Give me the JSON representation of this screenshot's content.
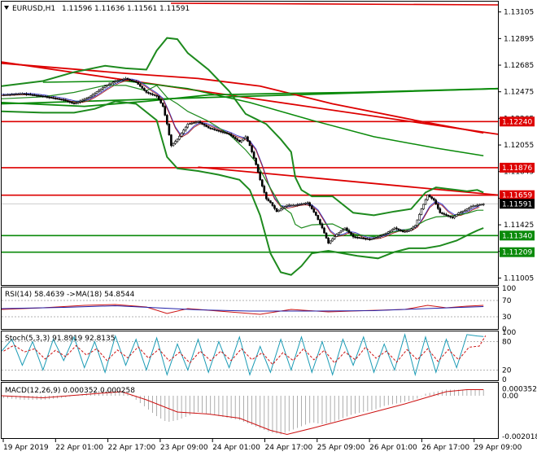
{
  "chart_data": {
    "type": "candlestick",
    "symbol_header": "EURUSD,H1",
    "ohlc_header": [
      "1.11596",
      "1.11636",
      "1.11561",
      "1.11591"
    ],
    "x_labels": [
      "19 Apr 2019",
      "22 Apr 01:00",
      "22 Apr 17:00",
      "23 Apr 09:00",
      "24 Apr 01:00",
      "24 Apr 17:00",
      "25 Apr 09:00",
      "26 Apr 01:00",
      "26 Apr 17:00",
      "29 Apr 09:00"
    ],
    "price_axis": {
      "ticks": [
        "1.13105",
        "1.12895",
        "1.12685",
        "1.12475",
        "1.12265",
        "1.12055",
        "1.11845",
        "1.11635",
        "1.11425",
        "1.11215",
        "1.11005"
      ],
      "range": [
        1.1095,
        1.1318
      ]
    },
    "price_tags": [
      {
        "label": "1.12240",
        "value": 1.1224,
        "color": "#dd0000"
      },
      {
        "label": "1.11876",
        "value": 1.11876,
        "color": "#dd0000"
      },
      {
        "label": "1.11659",
        "value": 1.11659,
        "color": "#dd0000"
      },
      {
        "label": "1.11591",
        "value": 1.11591,
        "color": "#000000"
      },
      {
        "label": "1.11340",
        "value": 1.1134,
        "color": "#0a8a0a"
      },
      {
        "label": "1.11209",
        "value": 1.11209,
        "color": "#0a8a0a"
      }
    ],
    "levels": [
      {
        "value": 1.1224,
        "color": "#dd0000"
      },
      {
        "value": 1.11876,
        "color": "#dd0000"
      },
      {
        "value": 1.11659,
        "color": "#dd0000"
      },
      {
        "value": 1.1134,
        "color": "#0a8a0a"
      },
      {
        "value": 1.11209,
        "color": "#0a8a0a"
      }
    ],
    "close_path": [
      [
        0,
        1.1245
      ],
      [
        10,
        1.1246
      ],
      [
        20,
        1.1244
      ],
      [
        30,
        1.1241
      ],
      [
        35,
        1.1238
      ],
      [
        42,
        1.1243
      ],
      [
        50,
        1.1252
      ],
      [
        55,
        1.1256
      ],
      [
        60,
        1.1258
      ],
      [
        65,
        1.1255
      ],
      [
        70,
        1.1247
      ],
      [
        75,
        1.1244
      ],
      [
        78,
        1.1236
      ],
      [
        80,
        1.1222
      ],
      [
        82,
        1.1205
      ],
      [
        85,
        1.121
      ],
      [
        90,
        1.1222
      ],
      [
        95,
        1.1224
      ],
      [
        100,
        1.1219
      ],
      [
        110,
        1.1214
      ],
      [
        115,
        1.1208
      ],
      [
        118,
        1.1212
      ],
      [
        120,
        1.1205
      ],
      [
        123,
        1.119
      ],
      [
        125,
        1.1178
      ],
      [
        128,
        1.1163
      ],
      [
        130,
        1.116
      ],
      [
        133,
        1.1153
      ],
      [
        138,
        1.1158
      ],
      [
        142,
        1.1158
      ],
      [
        148,
        1.116
      ],
      [
        152,
        1.115
      ],
      [
        155,
        1.114
      ],
      [
        158,
        1.1128
      ],
      [
        162,
        1.1135
      ],
      [
        166,
        1.114
      ],
      [
        170,
        1.1133
      ],
      [
        174,
        1.1132
      ],
      [
        178,
        1.1131
      ],
      [
        182,
        1.1133
      ],
      [
        186,
        1.1136
      ],
      [
        190,
        1.114
      ],
      [
        194,
        1.1137
      ],
      [
        197,
        1.1138
      ],
      [
        200,
        1.1142
      ],
      [
        203,
        1.1155
      ],
      [
        206,
        1.1166
      ],
      [
        209,
        1.1162
      ],
      [
        212,
        1.1152
      ],
      [
        215,
        1.115
      ],
      [
        218,
        1.1148
      ],
      [
        221,
        1.1152
      ],
      [
        224,
        1.1154
      ],
      [
        227,
        1.1157
      ],
      [
        230,
        1.1158
      ],
      [
        233,
        1.1159
      ]
    ],
    "bb_upper": [
      [
        0,
        1.1252
      ],
      [
        20,
        1.1256
      ],
      [
        35,
        1.1263
      ],
      [
        50,
        1.1268
      ],
      [
        60,
        1.1266
      ],
      [
        70,
        1.1265
      ],
      [
        75,
        1.128
      ],
      [
        80,
        1.129
      ],
      [
        85,
        1.1289
      ],
      [
        90,
        1.1278
      ],
      [
        100,
        1.1265
      ],
      [
        110,
        1.1248
      ],
      [
        118,
        1.123
      ],
      [
        123,
        1.1226
      ],
      [
        128,
        1.1222
      ],
      [
        135,
        1.121
      ],
      [
        140,
        1.12
      ],
      [
        142,
        1.118
      ],
      [
        145,
        1.117
      ],
      [
        150,
        1.1165
      ],
      [
        160,
        1.1165
      ],
      [
        170,
        1.1152
      ],
      [
        180,
        1.115
      ],
      [
        190,
        1.1153
      ],
      [
        198,
        1.1155
      ],
      [
        205,
        1.1168
      ],
      [
        210,
        1.1172
      ],
      [
        215,
        1.1171
      ],
      [
        220,
        1.117
      ],
      [
        225,
        1.1169
      ],
      [
        230,
        1.117
      ],
      [
        233,
        1.1168
      ]
    ],
    "bb_lower": [
      [
        0,
        1.1232
      ],
      [
        20,
        1.1231
      ],
      [
        35,
        1.1231
      ],
      [
        45,
        1.1234
      ],
      [
        55,
        1.124
      ],
      [
        65,
        1.1238
      ],
      [
        75,
        1.1225
      ],
      [
        80,
        1.1196
      ],
      [
        85,
        1.1187
      ],
      [
        95,
        1.1185
      ],
      [
        105,
        1.1182
      ],
      [
        115,
        1.1178
      ],
      [
        120,
        1.117
      ],
      [
        125,
        1.115
      ],
      [
        130,
        1.112
      ],
      [
        135,
        1.1105
      ],
      [
        140,
        1.1103
      ],
      [
        145,
        1.111
      ],
      [
        150,
        1.112
      ],
      [
        158,
        1.1122
      ],
      [
        165,
        1.112
      ],
      [
        172,
        1.1118
      ],
      [
        182,
        1.1116
      ],
      [
        190,
        1.1121
      ],
      [
        197,
        1.1124
      ],
      [
        205,
        1.1124
      ],
      [
        212,
        1.1126
      ],
      [
        220,
        1.113
      ],
      [
        226,
        1.1135
      ],
      [
        230,
        1.1138
      ],
      [
        233,
        1.114
      ]
    ],
    "ma_long_red": [
      [
        0,
        1.127
      ],
      [
        60,
        1.1262
      ],
      [
        95,
        1.1258
      ],
      [
        125,
        1.1252
      ],
      [
        160,
        1.1238
      ],
      [
        200,
        1.1225
      ],
      [
        233,
        1.1215
      ]
    ],
    "ma_long_green": [
      [
        0,
        1.1239
      ],
      [
        40,
        1.1236
      ],
      [
        70,
        1.124
      ],
      [
        100,
        1.1245
      ],
      [
        130,
        1.1246
      ],
      [
        170,
        1.1247
      ],
      [
        240,
        1.125
      ]
    ],
    "ma_mid_green": [
      [
        20,
        1.1255
      ],
      [
        60,
        1.1256
      ],
      [
        90,
        1.125
      ],
      [
        120,
        1.1239
      ],
      [
        150,
        1.1225
      ],
      [
        180,
        1.1212
      ],
      [
        210,
        1.1203
      ],
      [
        233,
        1.1197
      ]
    ],
    "trend_red_top": {
      "from": [
        0,
        1.1271
      ],
      "to": [
        240,
        1.1214
      ],
      "color": "#dd0000"
    },
    "trend_red_down": {
      "from": [
        95,
        1.1188
      ],
      "to": [
        240,
        1.1166
      ],
      "color": "#dd0000"
    },
    "trend_green_up": {
      "from": [
        0,
        1.1238
      ],
      "to": [
        240,
        1.125
      ],
      "color": "#0a8a0a"
    },
    "rsi": {
      "label": "RSI(14) 58.4639 ->MA(18) 54.8544",
      "levels": [
        "70",
        "30"
      ],
      "ticks": [
        "100",
        "70",
        "30",
        "0"
      ],
      "values": [
        [
          0,
          48
        ],
        [
          20,
          52
        ],
        [
          40,
          58
        ],
        [
          55,
          60
        ],
        [
          70,
          54
        ],
        [
          80,
          38
        ],
        [
          90,
          50
        ],
        [
          110,
          42
        ],
        [
          125,
          36
        ],
        [
          140,
          48
        ],
        [
          158,
          42
        ],
        [
          175,
          45
        ],
        [
          195,
          48
        ],
        [
          206,
          58
        ],
        [
          215,
          52
        ],
        [
          225,
          56
        ],
        [
          233,
          58
        ]
      ],
      "ma_values": [
        [
          0,
          50
        ],
        [
          30,
          53
        ],
        [
          55,
          57
        ],
        [
          75,
          52
        ],
        [
          95,
          47
        ],
        [
          120,
          44
        ],
        [
          150,
          44
        ],
        [
          180,
          45
        ],
        [
          205,
          50
        ],
        [
          233,
          55
        ]
      ]
    },
    "stoch": {
      "label": "Stoch(5,3,3) 91.8919 92.8135",
      "levels": [
        "80",
        "20"
      ],
      "ticks": [
        "100",
        "80",
        "20",
        "0"
      ],
      "values": [
        [
          0,
          60
        ],
        [
          5,
          85
        ],
        [
          10,
          30
        ],
        [
          15,
          80
        ],
        [
          20,
          20
        ],
        [
          25,
          85
        ],
        [
          30,
          40
        ],
        [
          35,
          90
        ],
        [
          40,
          25
        ],
        [
          45,
          80
        ],
        [
          50,
          15
        ],
        [
          55,
          92
        ],
        [
          60,
          30
        ],
        [
          65,
          85
        ],
        [
          70,
          20
        ],
        [
          75,
          88
        ],
        [
          80,
          10
        ],
        [
          85,
          75
        ],
        [
          90,
          20
        ],
        [
          95,
          85
        ],
        [
          100,
          15
        ],
        [
          105,
          80
        ],
        [
          110,
          25
        ],
        [
          115,
          90
        ],
        [
          120,
          10
        ],
        [
          125,
          70
        ],
        [
          130,
          15
        ],
        [
          135,
          85
        ],
        [
          140,
          20
        ],
        [
          145,
          90
        ],
        [
          150,
          15
        ],
        [
          155,
          80
        ],
        [
          160,
          10
        ],
        [
          165,
          85
        ],
        [
          170,
          30
        ],
        [
          175,
          90
        ],
        [
          180,
          15
        ],
        [
          185,
          75
        ],
        [
          190,
          20
        ],
        [
          195,
          95
        ],
        [
          200,
          10
        ],
        [
          205,
          90
        ],
        [
          210,
          15
        ],
        [
          215,
          85
        ],
        [
          220,
          25
        ],
        [
          225,
          95
        ],
        [
          230,
          92
        ],
        [
          233,
          91
        ]
      ]
    },
    "macd": {
      "label": "MACD(12,26,9) 0.000352 0.000258",
      "ticks": [
        "0.000352",
        "0.00",
        "-0.002018"
      ],
      "histogram": [
        [
          0,
          -0.0001
        ],
        [
          10,
          -0.0002
        ],
        [
          20,
          -0.0002
        ],
        [
          30,
          -0.0001
        ],
        [
          40,
          0.0001
        ],
        [
          50,
          0.0003
        ],
        [
          55,
          0.0003
        ],
        [
          60,
          0.0002
        ],
        [
          65,
          -0.0002
        ],
        [
          70,
          -0.0006
        ],
        [
          75,
          -0.001
        ],
        [
          80,
          -0.0013
        ],
        [
          85,
          -0.0012
        ],
        [
          90,
          -0.001
        ],
        [
          95,
          -0.0008
        ],
        [
          100,
          -0.0009
        ],
        [
          105,
          -0.001
        ],
        [
          110,
          -0.0011
        ],
        [
          115,
          -0.0012
        ],
        [
          120,
          -0.0014
        ],
        [
          125,
          -0.0016
        ],
        [
          130,
          -0.0018
        ],
        [
          135,
          -0.0019
        ],
        [
          140,
          -0.0017
        ],
        [
          145,
          -0.0015
        ],
        [
          150,
          -0.0013
        ],
        [
          155,
          -0.0014
        ],
        [
          160,
          -0.0013
        ],
        [
          165,
          -0.0011
        ],
        [
          170,
          -0.0009
        ],
        [
          175,
          -0.0008
        ],
        [
          180,
          -0.0007
        ],
        [
          185,
          -0.0005
        ],
        [
          190,
          -0.0004
        ],
        [
          195,
          -0.0003
        ],
        [
          200,
          -0.0002
        ],
        [
          205,
          0.0001
        ],
        [
          210,
          0.0002
        ],
        [
          215,
          0.0003
        ],
        [
          220,
          0.0003
        ],
        [
          225,
          0.0003
        ],
        [
          230,
          0.0003
        ],
        [
          233,
          0.0003
        ]
      ],
      "signal": [
        [
          0,
          0.0
        ],
        [
          20,
          -0.0001
        ],
        [
          45,
          0.0001
        ],
        [
          58,
          0.0002
        ],
        [
          70,
          -0.0002
        ],
        [
          85,
          -0.0008
        ],
        [
          100,
          -0.0009
        ],
        [
          115,
          -0.0011
        ],
        [
          130,
          -0.0017
        ],
        [
          138,
          -0.0019
        ],
        [
          150,
          -0.0016
        ],
        [
          165,
          -0.0012
        ],
        [
          180,
          -0.0008
        ],
        [
          195,
          -0.0004
        ],
        [
          205,
          -0.0001
        ],
        [
          215,
          0.0002
        ],
        [
          225,
          0.0003
        ],
        [
          233,
          0.0003
        ]
      ]
    }
  }
}
